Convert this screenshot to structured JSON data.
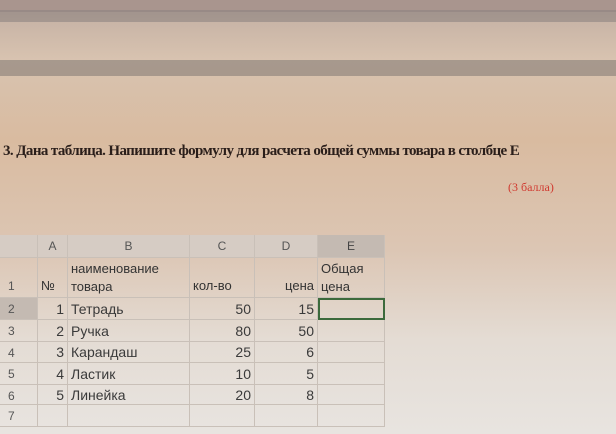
{
  "question": {
    "text": "3. Дана таблица. Напишите формулу для расчета общей суммы товара в столбце E",
    "points": "(3 балла)"
  },
  "sheet": {
    "columns": [
      "A",
      "B",
      "C",
      "D",
      "E"
    ],
    "rows": [
      "1",
      "2",
      "3",
      "4",
      "5",
      "6",
      "7"
    ],
    "header": {
      "a": "№",
      "b1": "наименование",
      "b2": "товара",
      "c": "кол-во",
      "d": "цена",
      "e1": "Общая",
      "e2": "цена"
    },
    "data": [
      {
        "n": "1",
        "name": "Тетрадь",
        "qty": "50",
        "price": "15"
      },
      {
        "n": "2",
        "name": "Ручка",
        "qty": "80",
        "price": "50"
      },
      {
        "n": "3",
        "name": "Карандаш",
        "qty": "25",
        "price": "6"
      },
      {
        "n": "4",
        "name": "Ластик",
        "qty": "10",
        "price": "5"
      },
      {
        "n": "5",
        "name": "Линейка",
        "qty": "20",
        "price": "8"
      }
    ],
    "selected_cell": "E2"
  }
}
